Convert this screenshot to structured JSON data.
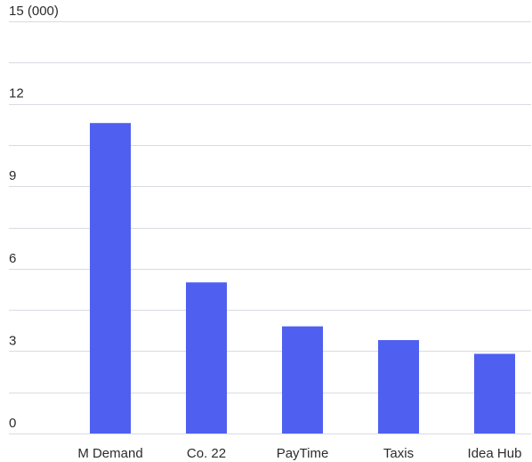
{
  "chart_data": {
    "type": "bar",
    "categories": [
      "M Demand",
      "Co. 22",
      "PayTime",
      "Taxis",
      "Idea Hub"
    ],
    "values": [
      11.3,
      5.5,
      3.9,
      3.4,
      2.9
    ],
    "ylim": [
      0,
      15
    ],
    "yticks": [
      0,
      3,
      6,
      9,
      12,
      15
    ],
    "ytick_labels": [
      "0",
      "3",
      "6",
      "9",
      "12",
      "15 (000)"
    ],
    "grid": true,
    "bar_color": "#4f5ff0",
    "grid_color": "#d9dbe3"
  }
}
